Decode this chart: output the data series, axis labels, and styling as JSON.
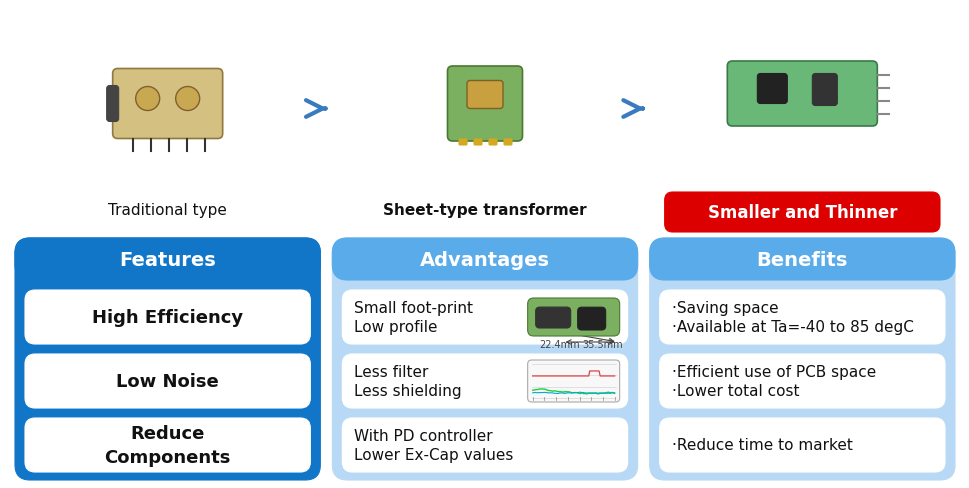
{
  "bg_color": "#ffffff",
  "arrow_color": "#3a7abf",
  "label1": "Traditional type",
  "label1_bold": false,
  "label2": "Sheet-type transformer",
  "label2_bold": true,
  "label3": "Smaller and Thinner",
  "label3_bg": "#dd0000",
  "label3_color": "#ffffff",
  "col_headers": [
    "Features",
    "Advantages",
    "Benefits"
  ],
  "col1_header_bg": "#1176c8",
  "col23_header_bg": "#5aabea",
  "col1_bg": "#1176c8",
  "col23_bg": "#b8d9f5",
  "features_items": [
    "High Efficiency",
    "Low Noise",
    "Reduce\nComponents"
  ],
  "advantages_items": [
    "Small foot-print\nLow profile",
    "Less filter\nLess shielding",
    "With PD controller\nLower Ex-Cap values"
  ],
  "benefits_groups": [
    [
      "·Saving space",
      "·Available at Ta=-40 to 85 degC"
    ],
    [
      "·Efficient use of PCB space",
      "·Lower total cost"
    ],
    [
      "·Reduce time to market"
    ]
  ],
  "item_bg": "#ffffff",
  "dim_label": "22.4mm",
  "dim_label2": "35.5mm"
}
